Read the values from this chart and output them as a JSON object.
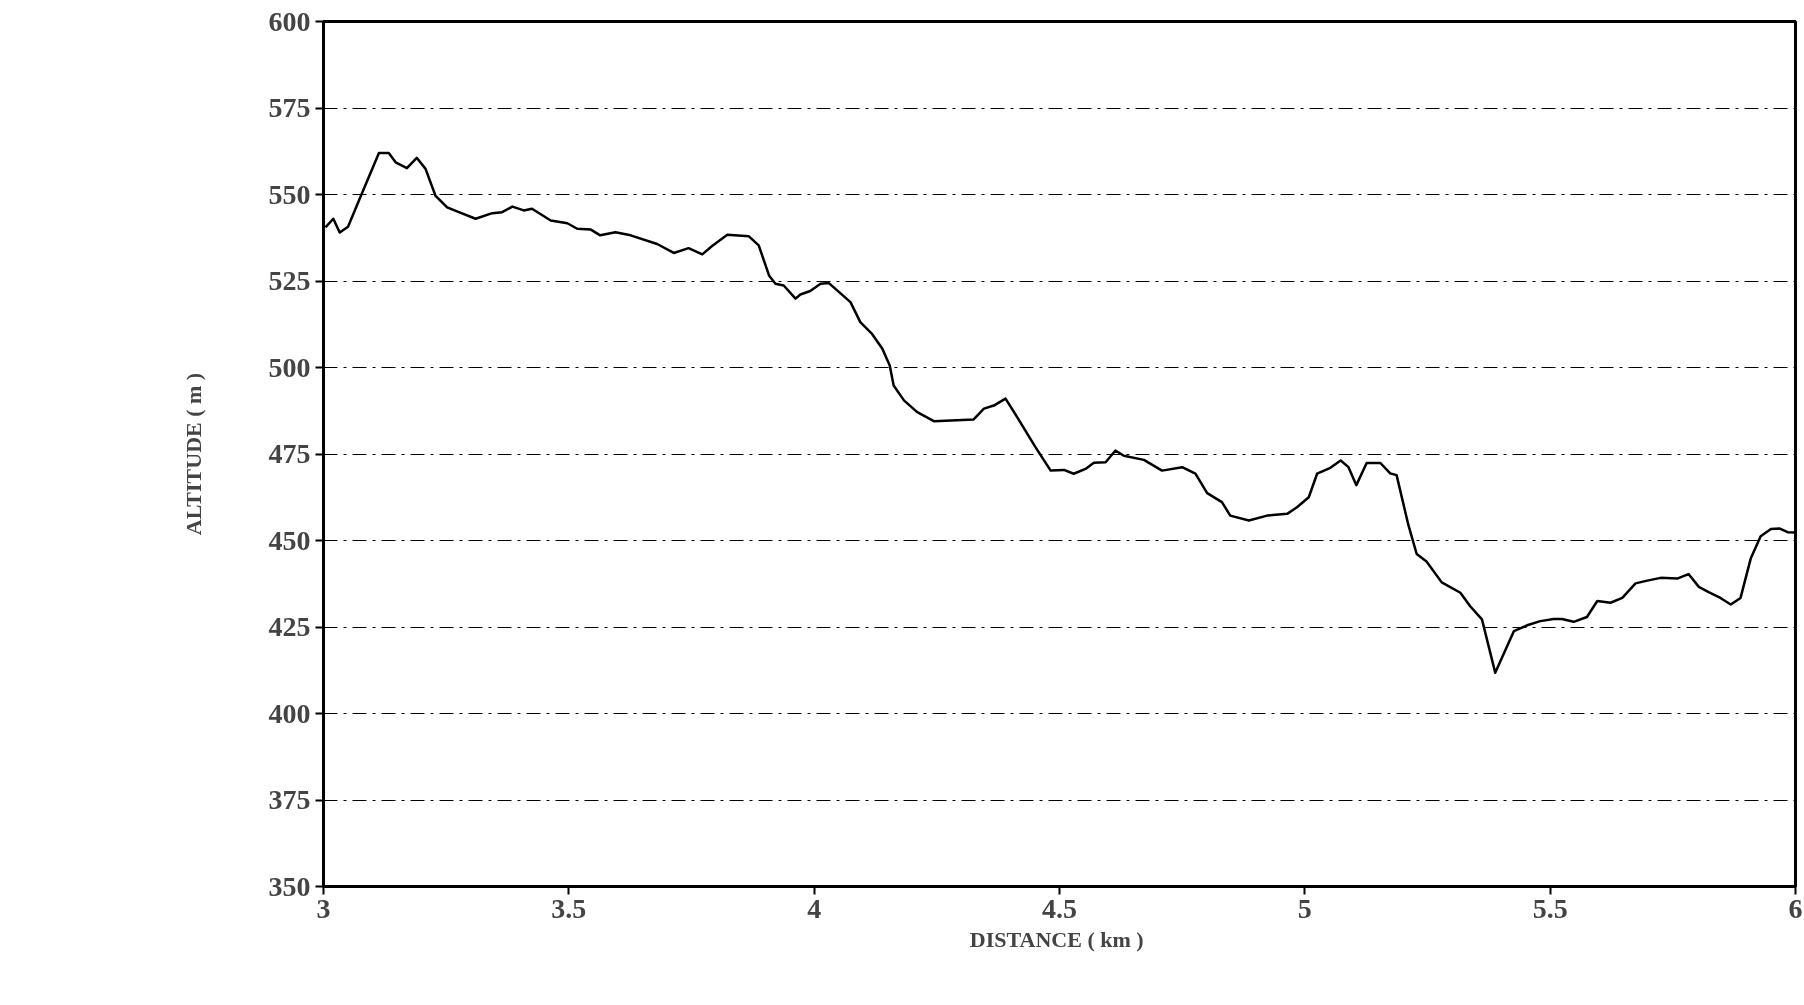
{
  "chart_data": {
    "type": "line",
    "xlabel": "DISTANCE  ( km )",
    "ylabel": "ALTITUDE ( m )",
    "xlim": [
      3,
      6
    ],
    "ylim": [
      350,
      600
    ],
    "xticks": [
      3,
      3.5,
      4,
      4.5,
      5,
      5.5,
      6
    ],
    "yticks": [
      350,
      375,
      400,
      425,
      450,
      475,
      500,
      525,
      550,
      575,
      600
    ],
    "grid": "y",
    "marker": "none",
    "line_style": "solid",
    "series": [
      {
        "color": "#000000",
        "x": [
          3.004,
          3.02,
          3.033,
          3.05,
          3.075,
          3.113,
          3.133,
          3.147,
          3.17,
          3.19,
          3.208,
          3.228,
          3.252,
          3.276,
          3.31,
          3.344,
          3.364,
          3.385,
          3.408,
          3.425,
          3.463,
          3.497,
          3.517,
          3.544,
          3.564,
          3.595,
          3.626,
          3.68,
          3.714,
          3.744,
          3.772,
          3.792,
          3.823,
          3.867,
          3.887,
          3.908,
          3.921,
          3.938,
          3.962,
          3.972,
          3.992,
          4.013,
          4.03,
          4.074,
          4.094,
          4.118,
          4.139,
          4.154,
          4.162,
          4.183,
          4.21,
          4.244,
          4.325,
          4.346,
          4.366,
          4.39,
          4.414,
          4.451,
          4.482,
          4.509,
          4.529,
          4.553,
          4.57,
          4.594,
          4.614,
          4.631,
          4.672,
          4.709,
          4.75,
          4.777,
          4.801,
          4.831,
          4.848,
          4.886,
          4.923,
          4.964,
          4.984,
          5.008,
          5.025,
          5.052,
          5.073,
          5.089,
          5.105,
          5.126,
          5.154,
          5.174,
          5.187,
          5.211,
          5.228,
          5.248,
          5.279,
          5.317,
          5.337,
          5.361,
          5.388,
          5.426,
          5.453,
          5.48,
          5.507,
          5.524,
          5.548,
          5.575,
          5.596,
          5.623,
          5.647,
          5.674,
          5.698,
          5.725,
          5.759,
          5.782,
          5.803,
          5.823,
          5.847,
          5.868,
          5.888,
          5.909,
          5.929,
          5.95,
          5.967,
          5.984,
          6.0
        ],
        "values": [
          540.5,
          543,
          539,
          540.7,
          549.2,
          562,
          562,
          559.3,
          557.6,
          560.6,
          557.4,
          549.7,
          546.3,
          544.9,
          543,
          544.6,
          544.9,
          546.5,
          545.4,
          545.9,
          542.5,
          541.7,
          540.1,
          539.9,
          538.2,
          539.1,
          538.2,
          535.7,
          533.1,
          534.5,
          532.7,
          535.1,
          538.4,
          537.9,
          535.3,
          526.6,
          524.2,
          523.7,
          519.9,
          521.1,
          522.1,
          524.2,
          524.4,
          518.9,
          513.1,
          509.7,
          505.4,
          500.6,
          494.8,
          490.5,
          487.1,
          484.5,
          485,
          488.1,
          489,
          491,
          485.6,
          477,
          470.2,
          470.4,
          469.3,
          470.7,
          472.5,
          472.6,
          476,
          474.5,
          473.3,
          470.2,
          471.2,
          469.3,
          463.7,
          461.1,
          457.2,
          455.8,
          457.2,
          457.7,
          459.6,
          462.5,
          469.3,
          471,
          473.1,
          471.2,
          466,
          472.4,
          472.4,
          469.4,
          468.9,
          454.5,
          446.1,
          443.9,
          437.9,
          434.9,
          431,
          427.2,
          411.8,
          423.8,
          425.5,
          426.7,
          427.3,
          427.3,
          426.5,
          427.9,
          432.5,
          432,
          433.4,
          437.6,
          438.4,
          439.2,
          439,
          440.3,
          436.6,
          435.1,
          433.4,
          431.5,
          433.4,
          444.9,
          451.2,
          453.3,
          453.5,
          452.4,
          452.3
        ]
      }
    ]
  }
}
